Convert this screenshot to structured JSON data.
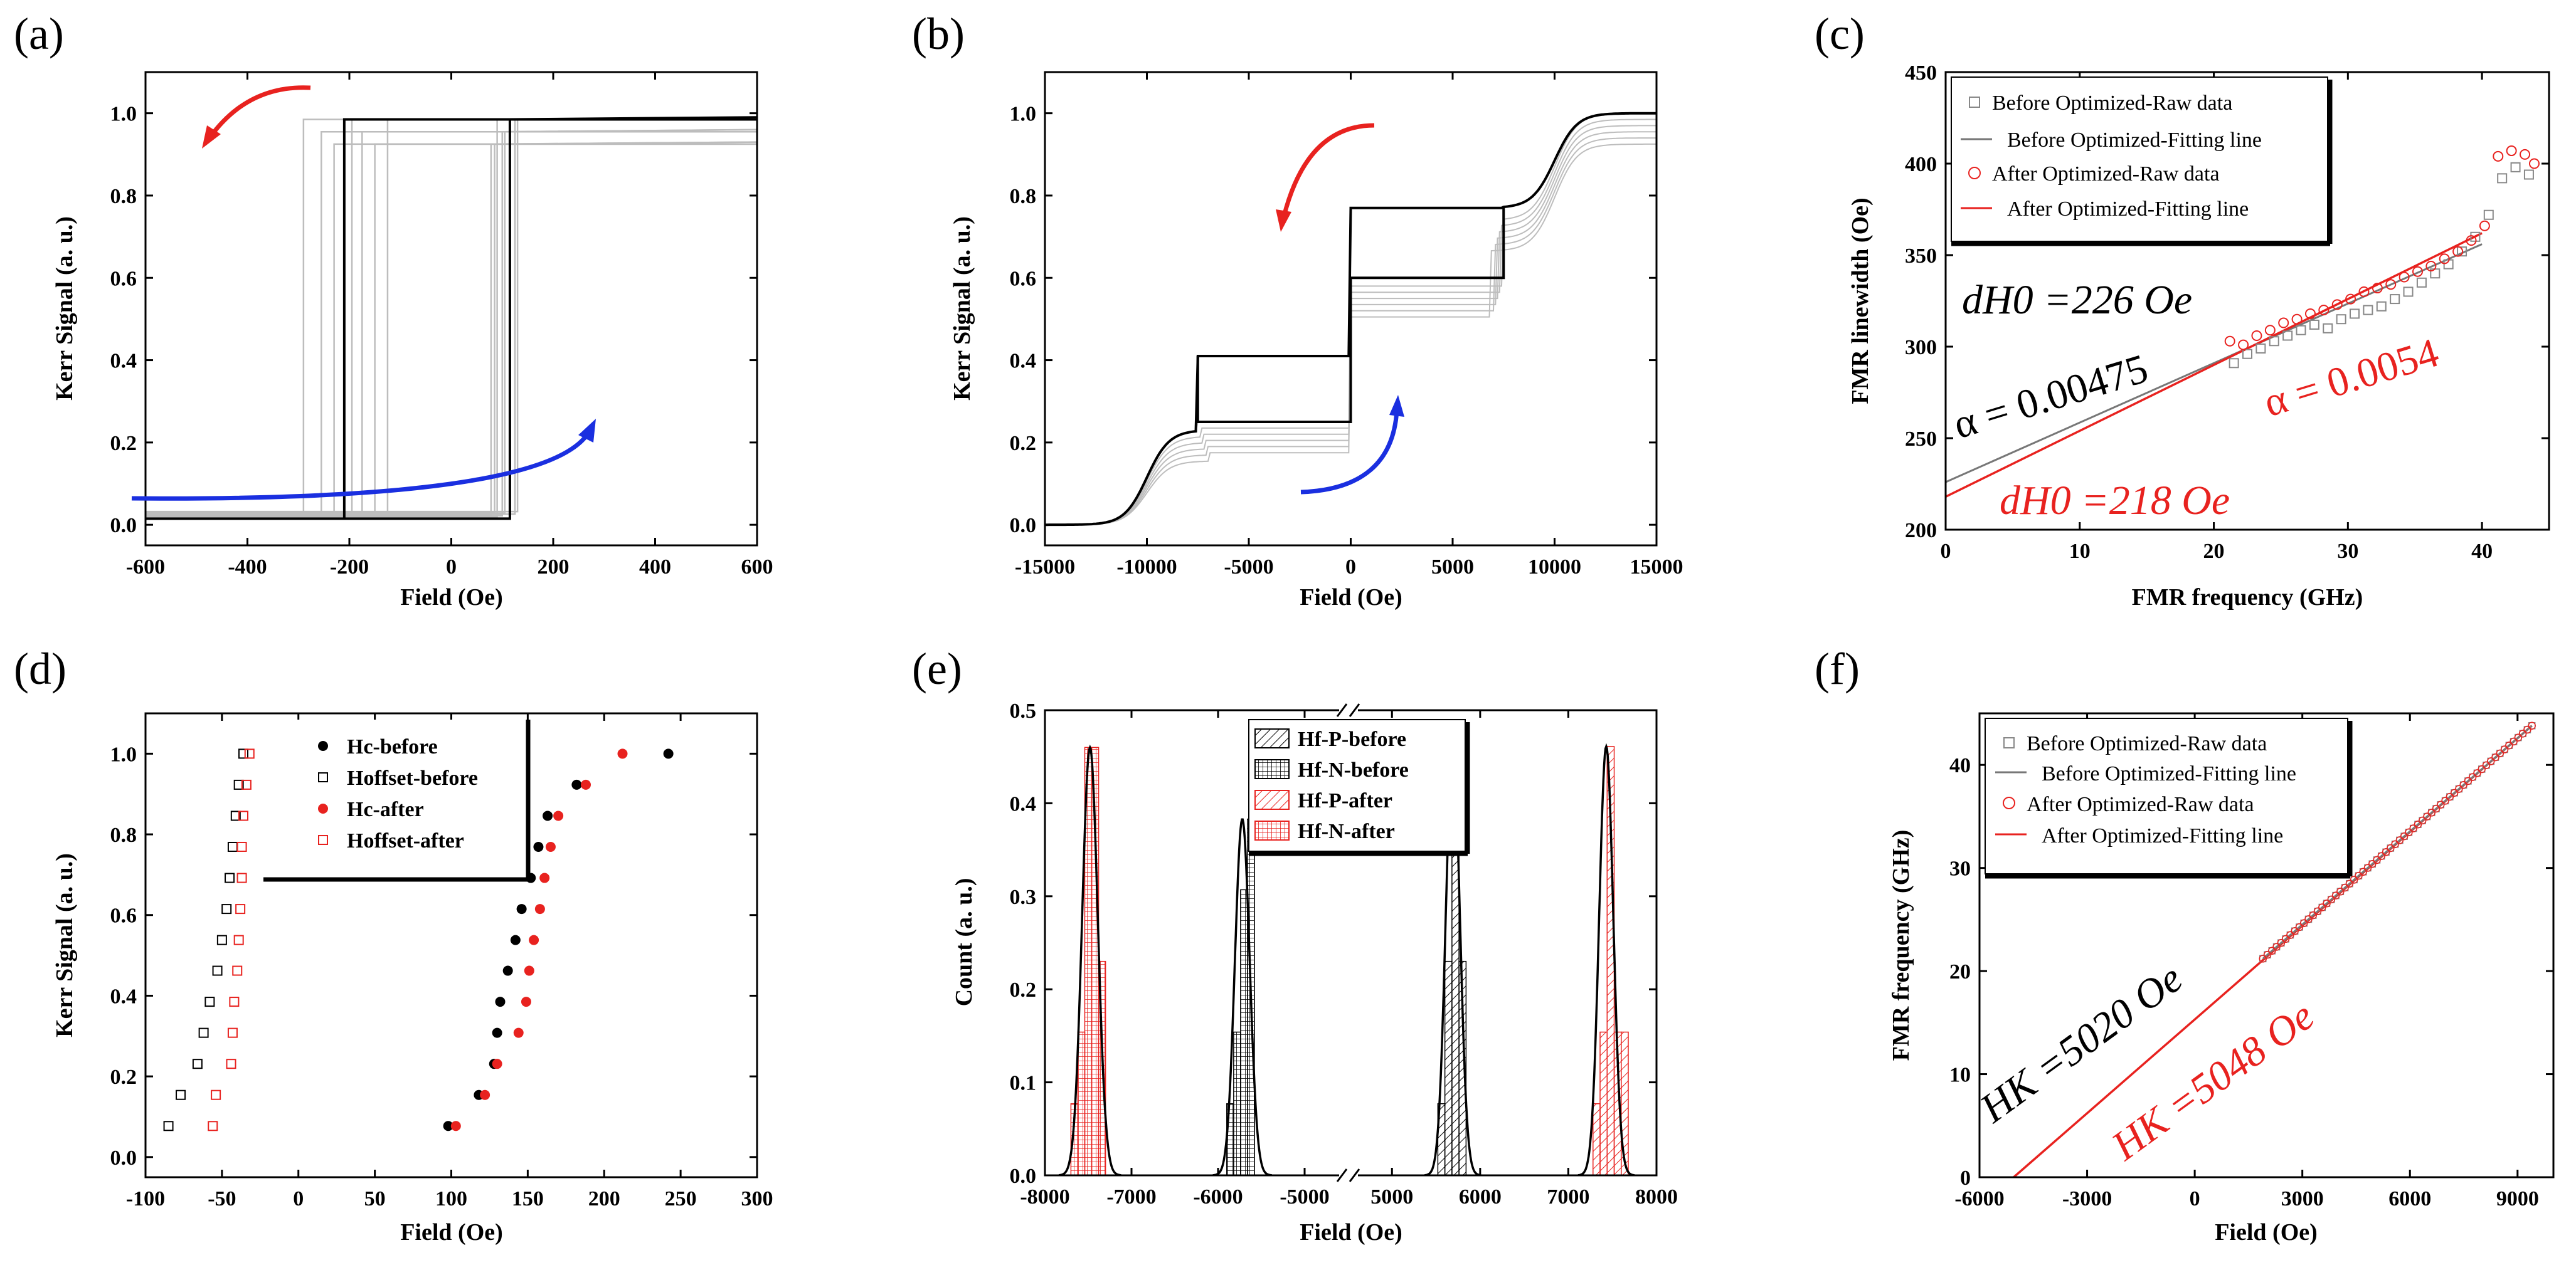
{
  "panels": {
    "a": {
      "label": "(a)"
    },
    "b": {
      "label": "(b)"
    },
    "c": {
      "label": "(c)"
    },
    "d": {
      "label": "(d)"
    },
    "e": {
      "label": "(e)"
    },
    "f": {
      "label": "(f)"
    }
  },
  "colors": {
    "red": "#e8221f",
    "blue": "#1a2fe0",
    "gray": "#888888",
    "black": "#000000",
    "light_gray": "#bdbdbd"
  },
  "chart_data": [
    {
      "id": "a",
      "type": "line",
      "xlabel": "Field (Oe)",
      "ylabel": "Kerr Signal (a. u.)",
      "xlim": [
        -600,
        600
      ],
      "ylim": [
        -0.05,
        1.1
      ],
      "xticks": [
        -600,
        -400,
        -200,
        0,
        200,
        400,
        600
      ],
      "yticks": [
        0.0,
        0.2,
        0.4,
        0.6,
        0.8,
        1.0
      ],
      "tick_labels_x": [
        "-600",
        "-400",
        "-200",
        "0",
        "200",
        "400",
        "600"
      ],
      "tick_labels_y": [
        "0.0",
        "0.2",
        "0.4",
        "0.6",
        "0.8",
        "1.0"
      ],
      "main_loop": {
        "hc_minus": -210,
        "hc_plus": 115,
        "low": 0.015,
        "high": 0.985
      },
      "gray_loops": [
        {
          "hc_minus": -290,
          "hc_plus": 90
        },
        {
          "hc_minus": -255,
          "hc_plus": 100
        },
        {
          "hc_minus": -230,
          "hc_plus": 78
        },
        {
          "hc_minus": -195,
          "hc_plus": 125
        },
        {
          "hc_minus": -175,
          "hc_plus": 105
        },
        {
          "hc_minus": -150,
          "hc_plus": 85
        },
        {
          "hc_minus": -125,
          "hc_plus": 130
        }
      ],
      "arrows": [
        {
          "color": "red",
          "direction": "down"
        },
        {
          "color": "blue",
          "direction": "up"
        }
      ]
    },
    {
      "id": "b",
      "type": "line",
      "xlabel": "Field (Oe)",
      "ylabel": "Kerr Signal (a. u.)",
      "xlim": [
        -15000,
        15000
      ],
      "ylim": [
        -0.05,
        1.1
      ],
      "xticks": [
        -15000,
        -10000,
        -5000,
        0,
        5000,
        10000,
        15000
      ],
      "yticks": [
        0.0,
        0.2,
        0.4,
        0.6,
        0.8,
        1.0
      ],
      "tick_labels_x": [
        "-15000",
        "-10000",
        "-5000",
        "0",
        "5000",
        "10000",
        "15000"
      ],
      "tick_labels_y": [
        "0.0",
        "0.2",
        "0.4",
        "0.6",
        "0.8",
        "1.0"
      ],
      "steps": {
        "sat_center": 10000,
        "switch_left": -7500,
        "switch_right": 7500,
        "levels": [
          0.0,
          0.23,
          0.41,
          0.6,
          0.77,
          1.0
        ]
      },
      "arrows": [
        {
          "color": "red",
          "direction": "down"
        },
        {
          "color": "blue",
          "direction": "up"
        }
      ]
    },
    {
      "id": "c",
      "type": "scatter",
      "xlabel": "FMR frequency (GHz)",
      "ylabel": "FMR linewidth (Oe)",
      "xlim": [
        0,
        45
      ],
      "ylim": [
        200,
        450
      ],
      "xticks": [
        0,
        10,
        20,
        30,
        40
      ],
      "yticks": [
        200,
        250,
        300,
        350,
        400,
        450
      ],
      "tick_labels_x": [
        "0",
        "10",
        "20",
        "30",
        "40"
      ],
      "tick_labels_y": [
        "200",
        "250",
        "300",
        "350",
        "400",
        "450"
      ],
      "legend": [
        "Before Optimized-Raw data",
        "Before Optimized-Fitting line",
        "After Optimized-Raw data",
        "After Optimized-Fitting line"
      ],
      "series": [
        {
          "name": "Before Optimized-Raw data",
          "marker": "square",
          "color": "gray",
          "x": [
            21.5,
            22.5,
            23.5,
            24.5,
            25.5,
            26.5,
            27.5,
            28.5,
            29.5,
            30.5,
            31.5,
            32.5,
            33.5,
            34.5,
            35.5,
            36.5,
            37.5,
            38.5,
            39.5,
            40.5,
            41.5,
            42.5,
            43.5
          ],
          "y": [
            291,
            296,
            299,
            303,
            306,
            309,
            312,
            310,
            315,
            318,
            320,
            322,
            326,
            330,
            335,
            340,
            345,
            352,
            360,
            372,
            392,
            398,
            394
          ]
        },
        {
          "name": "Before Optimized-Fitting line",
          "color": "gray",
          "x": [
            0,
            40
          ],
          "y": [
            226,
            356
          ]
        },
        {
          "name": "After Optimized-Raw data",
          "marker": "circle",
          "color": "red",
          "x": [
            21.2,
            22.2,
            23.2,
            24.2,
            25.2,
            26.2,
            27.2,
            28.2,
            29.2,
            30.2,
            31.2,
            32.2,
            33.2,
            34.2,
            35.2,
            36.2,
            37.2,
            38.2,
            39.2,
            40.2,
            41.2,
            42.2,
            43.2,
            43.9
          ],
          "y": [
            303,
            301,
            306,
            309,
            313,
            315,
            318,
            320,
            323,
            326,
            330,
            332,
            334,
            338,
            341,
            344,
            348,
            352,
            358,
            366,
            404,
            407,
            405,
            400
          ]
        },
        {
          "name": "After Optimized-Fitting line",
          "color": "red",
          "x": [
            0,
            40
          ],
          "y": [
            218,
            362
          ]
        }
      ],
      "annotations": [
        "dH0 =226 Oe",
        "α = 0.00475",
        "α = 0.0054",
        "dH0 =218 Oe"
      ]
    },
    {
      "id": "d",
      "type": "scatter",
      "xlabel": "Field (Oe)",
      "ylabel": "Kerr Signal (a. u.)",
      "xlim": [
        -100,
        300
      ],
      "ylim": [
        -0.05,
        1.1
      ],
      "xticks": [
        -100,
        -50,
        0,
        50,
        100,
        150,
        200,
        250,
        300
      ],
      "yticks": [
        0.0,
        0.2,
        0.4,
        0.6,
        0.8,
        1.0
      ],
      "tick_labels_x": [
        "-100",
        "-50",
        "0",
        "50",
        "100",
        "150",
        "200",
        "250",
        "300"
      ],
      "tick_labels_y": [
        "0.0",
        "0.2",
        "0.4",
        "0.6",
        "0.8",
        "1.0"
      ],
      "legend": [
        "Hc-before",
        "Hoffset-before",
        "Hc-after",
        "Hoffset-after"
      ],
      "series": [
        {
          "name": "Hc-before",
          "marker": "filled-circle",
          "color": "black",
          "x": [
            98,
            118,
            128,
            130,
            132,
            137,
            142,
            146,
            152,
            157,
            163,
            182,
            242
          ],
          "y": [
            0.077,
            0.154,
            0.231,
            0.308,
            0.385,
            0.462,
            0.538,
            0.615,
            0.692,
            0.769,
            0.846,
            0.923,
            1.0
          ]
        },
        {
          "name": "Hoffset-before",
          "marker": "open-square",
          "color": "black",
          "x": [
            -85,
            -77,
            -66,
            -62,
            -58,
            -53,
            -50,
            -47,
            -45,
            -43,
            -41,
            -39,
            -36
          ],
          "y": [
            0.077,
            0.154,
            0.231,
            0.308,
            0.385,
            0.462,
            0.538,
            0.615,
            0.692,
            0.769,
            0.846,
            0.923,
            1.0
          ]
        },
        {
          "name": "Hc-after",
          "marker": "filled-circle",
          "color": "red",
          "x": [
            103,
            122,
            130,
            144,
            149,
            151,
            154,
            158,
            161,
            165,
            170,
            188,
            212
          ],
          "y": [
            0.077,
            0.154,
            0.231,
            0.308,
            0.385,
            0.462,
            0.538,
            0.615,
            0.692,
            0.769,
            0.846,
            0.923,
            1.0
          ]
        },
        {
          "name": "Hoffset-after",
          "marker": "open-square",
          "color": "red",
          "x": [
            -56,
            -54,
            -44,
            -43,
            -42,
            -40,
            -39,
            -38,
            -37,
            -37,
            -36,
            -34,
            -32
          ],
          "y": [
            0.077,
            0.154,
            0.231,
            0.308,
            0.385,
            0.462,
            0.538,
            0.615,
            0.692,
            0.769,
            0.846,
            0.923,
            1.0
          ]
        }
      ]
    },
    {
      "id": "e",
      "type": "bar",
      "xlabel": "Field (Oe)",
      "ylabel": "Count (a. u.)",
      "xlim_segments": [
        [
          -8000,
          -4500
        ],
        [
          4500,
          8000
        ]
      ],
      "ylim": [
        0,
        0.5
      ],
      "xticks": [
        -8000,
        -7000,
        -6000,
        -5000,
        5000,
        6000,
        7000,
        8000
      ],
      "yticks": [
        0.0,
        0.1,
        0.2,
        0.3,
        0.4,
        0.5
      ],
      "tick_labels_x": [
        "-8000",
        "-7000",
        "-6000",
        "-5000",
        "5000",
        "6000",
        "7000",
        "8000"
      ],
      "tick_labels_y": [
        "0.0",
        "0.1",
        "0.2",
        "0.3",
        "0.4",
        "0.5"
      ],
      "legend": [
        "Hf-P-before",
        "Hf-N-before",
        "Hf-P-after",
        "Hf-N-after"
      ],
      "series": [
        {
          "name": "Hf-N-after",
          "color": "red",
          "pattern": "grid",
          "center": -7480,
          "sigma": 90,
          "peak": 0.46,
          "bins": [
            [
              -7700,
              0.077
            ],
            [
              -7620,
              0.154
            ],
            [
              -7540,
              0.46
            ],
            [
              -7460,
              0.46
            ],
            [
              -7380,
              0.23
            ]
          ]
        },
        {
          "name": "Hf-N-before",
          "color": "black",
          "pattern": "grid",
          "center": -5720,
          "sigma": 85,
          "peak": 0.383,
          "bins": [
            [
              -5900,
              0.077
            ],
            [
              -5820,
              0.154
            ],
            [
              -5740,
              0.307
            ],
            [
              -5660,
              0.383
            ]
          ]
        },
        {
          "name": "Hf-P-before",
          "color": "black",
          "pattern": "diag",
          "center": 5690,
          "sigma": 80,
          "peak": 0.461,
          "bins": [
            [
              5520,
              0.077
            ],
            [
              5600,
              0.23
            ],
            [
              5680,
              0.461
            ],
            [
              5760,
              0.23
            ]
          ]
        },
        {
          "name": "Hf-P-after",
          "color": "red",
          "pattern": "diag",
          "center": 7430,
          "sigma": 80,
          "peak": 0.461,
          "bins": [
            [
              7280,
              0.077
            ],
            [
              7360,
              0.154
            ],
            [
              7440,
              0.461
            ],
            [
              7520,
              0.154
            ],
            [
              7600,
              0.154
            ]
          ]
        }
      ]
    },
    {
      "id": "f",
      "type": "scatter",
      "xlabel": "Field (Oe)",
      "ylabel": "FMR frequency (GHz)",
      "xlim": [
        -6000,
        10000
      ],
      "ylim": [
        0,
        45
      ],
      "xticks": [
        -6000,
        -3000,
        0,
        3000,
        6000,
        9000
      ],
      "yticks": [
        0,
        10,
        20,
        30,
        40
      ],
      "tick_labels_x": [
        "-6000",
        "-3000",
        "0",
        "3000",
        "6000",
        "9000"
      ],
      "tick_labels_y": [
        "0",
        "10",
        "20",
        "30",
        "40"
      ],
      "legend": [
        "Before Optimized-Raw data",
        "Before Optimized-Fitting line",
        "After Optimized-Raw data",
        "After Optimized-Fitting line"
      ],
      "series": [
        {
          "name": "Before Optimized-Raw data",
          "marker": "square",
          "color": "gray",
          "x_range": [
            1900,
            9400
          ],
          "count": 60
        },
        {
          "name": "Before Optimized-Fitting line",
          "color": "gray",
          "x": [
            1900,
            9400
          ],
          "y": [
            21.2,
            43.8
          ]
        },
        {
          "name": "After Optimized-Raw data",
          "marker": "circle",
          "color": "red",
          "x_range": [
            1900,
            9400
          ],
          "count": 60
        },
        {
          "name": "After Optimized-Fitting line",
          "color": "red",
          "x": [
            -5048,
            9400
          ],
          "y": [
            0,
            43.8
          ]
        }
      ],
      "annotations": [
        "HK =5020 Oe",
        "HK =5048 Oe"
      ]
    }
  ]
}
